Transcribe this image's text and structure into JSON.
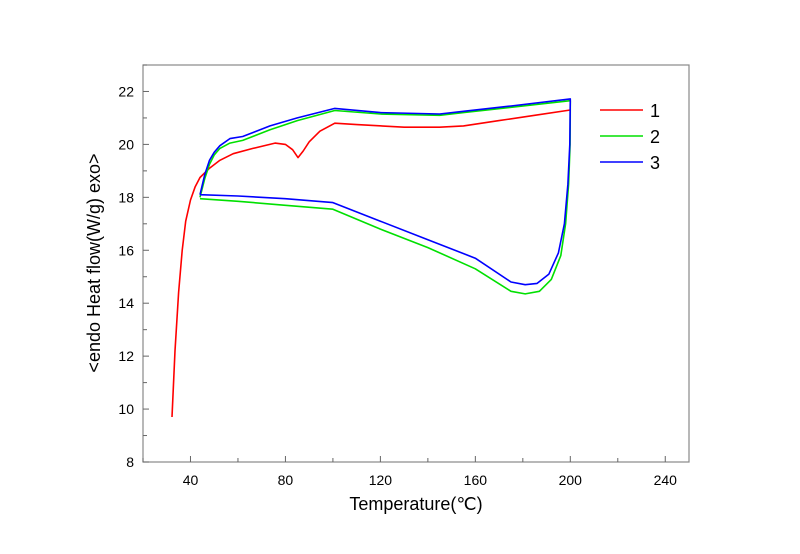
{
  "chart_data": {
    "type": "line",
    "title": "",
    "xlabel": "Temperature(℃)",
    "ylabel": "<endo Heat flow(W/g) exo>",
    "xlim": [
      20,
      250
    ],
    "ylim": [
      8,
      23
    ],
    "xticks": [
      40,
      80,
      120,
      160,
      200,
      240
    ],
    "xtick_labels": [
      "40",
      "80",
      "120",
      "160",
      "200",
      "240"
    ],
    "yticks": [
      8,
      10,
      12,
      14,
      16,
      18,
      20,
      22
    ],
    "ytick_labels": [
      "8",
      "10",
      "12",
      "14",
      "16",
      "18",
      "20",
      "22"
    ],
    "grid": false,
    "legend_position": "top-right",
    "series": [
      {
        "name": "1",
        "color": "#ff0000",
        "x": [
          32.2,
          33.5,
          35,
          36.5,
          38,
          40,
          42,
          44,
          48,
          52.4,
          58,
          66.3,
          75.6,
          80,
          83,
          85.3,
          87.5,
          90,
          94.5,
          100.8,
          110,
          130,
          145,
          155,
          170,
          185,
          200
        ],
        "y": [
          9.7,
          12.2,
          14.4,
          16.0,
          17.1,
          17.9,
          18.4,
          18.75,
          19.1,
          19.4,
          19.65,
          19.85,
          20.05,
          20.0,
          19.8,
          19.5,
          19.75,
          20.1,
          20.5,
          20.8,
          20.75,
          20.65,
          20.65,
          20.7,
          20.9,
          21.1,
          21.3
        ]
      },
      {
        "name": "2",
        "color": "#00e000",
        "x": [
          44,
          46,
          48,
          50,
          52.4,
          56.6,
          62,
          73.5,
          85,
          100.8,
          120,
          145,
          155,
          175,
          200,
          199.9,
          199.3,
          198,
          196,
          192,
          187,
          181,
          175,
          160,
          140,
          120,
          100,
          80,
          60,
          44
        ],
        "y": [
          18.0,
          18.7,
          19.25,
          19.6,
          19.85,
          20.05,
          20.15,
          20.55,
          20.9,
          21.28,
          21.15,
          21.1,
          21.2,
          21.4,
          21.65,
          20.0,
          18.5,
          17.0,
          15.8,
          14.9,
          14.45,
          14.35,
          14.45,
          15.3,
          16.1,
          16.8,
          17.55,
          17.7,
          17.85,
          17.95
        ]
      },
      {
        "name": "3",
        "color": "#0000ff",
        "x": [
          44,
          46,
          48,
          50,
          52.4,
          56.6,
          62,
          73.5,
          85,
          100.8,
          120,
          145,
          155,
          175,
          200,
          199.8,
          199,
          197.5,
          195,
          191,
          186,
          181,
          175,
          160,
          140,
          120,
          100,
          80,
          60,
          44
        ],
        "y": [
          18.1,
          18.85,
          19.4,
          19.7,
          19.95,
          20.22,
          20.3,
          20.7,
          21.0,
          21.36,
          21.2,
          21.15,
          21.25,
          21.45,
          21.72,
          20.0,
          18.5,
          17.0,
          15.9,
          15.1,
          14.75,
          14.7,
          14.8,
          15.7,
          16.4,
          17.1,
          17.8,
          17.95,
          18.05,
          18.1
        ]
      }
    ]
  }
}
